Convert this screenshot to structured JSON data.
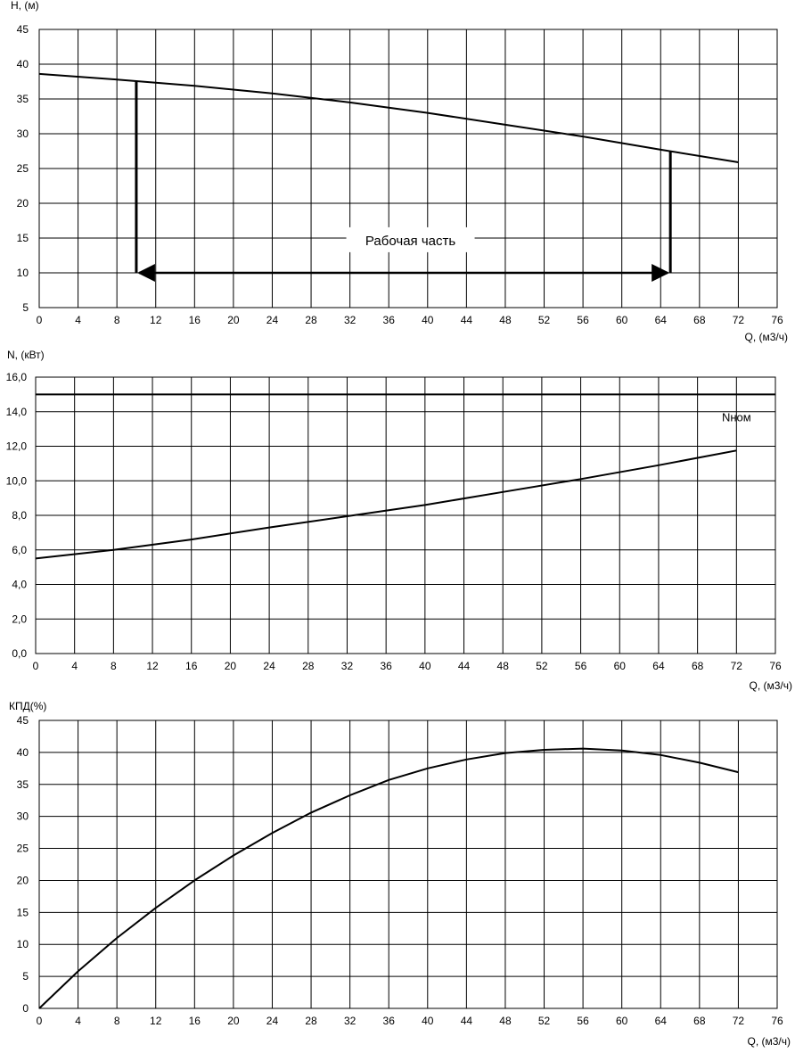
{
  "chart_data": [
    {
      "type": "line",
      "ylabel": "H, (м)",
      "xlabel": "Q, (м3/ч)",
      "xlim": [
        0,
        76
      ],
      "ylim": [
        5,
        45
      ],
      "xticks": [
        "0",
        "4",
        "8",
        "12",
        "16",
        "20",
        "24",
        "28",
        "32",
        "36",
        "40",
        "44",
        "48",
        "52",
        "56",
        "60",
        "64",
        "68",
        "72",
        "76"
      ],
      "yticks": [
        "5",
        "10",
        "15",
        "20",
        "25",
        "30",
        "35",
        "40",
        "45"
      ],
      "grid": true,
      "series": [
        {
          "x": [
            0,
            8,
            16,
            24,
            32,
            40,
            48,
            56,
            64,
            72
          ],
          "y": [
            38.6,
            37.8,
            36.9,
            35.8,
            34.5,
            33.0,
            31.3,
            29.6,
            27.7,
            25.9
          ],
          "color": "#000000"
        }
      ],
      "working_range": {
        "q_min": 10,
        "q_max": 65,
        "h_level": 10,
        "label": "Рабочая часть"
      }
    },
    {
      "type": "line",
      "ylabel": "N, (кВт)",
      "xlabel": "Q, (м3/ч)",
      "xlim": [
        0,
        76
      ],
      "ylim": [
        0,
        16
      ],
      "xticks": [
        "0",
        "4",
        "8",
        "12",
        "16",
        "20",
        "24",
        "28",
        "32",
        "36",
        "40",
        "44",
        "48",
        "52",
        "56",
        "60",
        "64",
        "68",
        "72",
        "76"
      ],
      "yticks": [
        "0,0",
        "2,0",
        "4,0",
        "6,0",
        "8,0",
        "10,0",
        "12,0",
        "14,0",
        "16,0"
      ],
      "grid": true,
      "series": [
        {
          "x": [
            0,
            8,
            16,
            24,
            32,
            40,
            48,
            56,
            64,
            72
          ],
          "y": [
            5.5,
            6.0,
            6.6,
            7.3,
            7.95,
            8.6,
            9.35,
            10.1,
            10.9,
            11.75
          ],
          "color": "#000000"
        }
      ],
      "nominal_power": {
        "value": 15.0,
        "label": "Nном"
      }
    },
    {
      "type": "line",
      "ylabel": "КПД(%)",
      "xlabel": "Q, (м3/ч)",
      "xlim": [
        0,
        76
      ],
      "ylim": [
        0,
        45
      ],
      "xticks": [
        "0",
        "4",
        "8",
        "12",
        "16",
        "20",
        "24",
        "28",
        "32",
        "36",
        "40",
        "44",
        "48",
        "52",
        "56",
        "60",
        "64",
        "68",
        "72",
        "76"
      ],
      "yticks": [
        "0",
        "5",
        "10",
        "15",
        "20",
        "25",
        "30",
        "35",
        "40",
        "45"
      ],
      "grid": true,
      "series": [
        {
          "x": [
            0,
            4,
            8,
            12,
            16,
            20,
            24,
            28,
            32,
            36,
            40,
            44,
            48,
            52,
            56,
            60,
            64,
            68,
            72
          ],
          "y": [
            0,
            5.8,
            11.0,
            15.7,
            20.0,
            23.9,
            27.4,
            30.6,
            33.3,
            35.7,
            37.5,
            38.9,
            39.9,
            40.4,
            40.6,
            40.3,
            39.6,
            38.4,
            36.9
          ],
          "color": "#000000"
        }
      ]
    }
  ]
}
